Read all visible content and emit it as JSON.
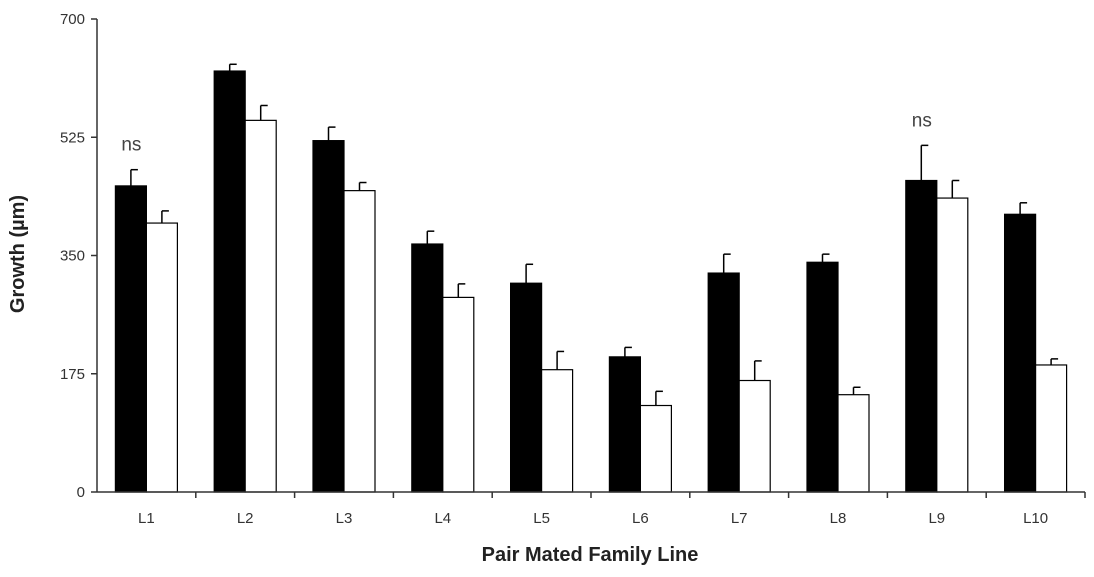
{
  "chart_data": {
    "type": "bar",
    "title": "",
    "xlabel": "Pair Mated Family Line",
    "ylabel": "Growth (µm)",
    "ylim": [
      0,
      700
    ],
    "yticks": [
      0,
      175,
      350,
      525,
      700
    ],
    "categories": [
      "L1",
      "L2",
      "L3",
      "L4",
      "L5",
      "L6",
      "L7",
      "L8",
      "L9",
      "L10"
    ],
    "series": [
      {
        "color": "#000000",
        "values": [
          453,
          623,
          520,
          367,
          309,
          200,
          324,
          340,
          461,
          411
        ],
        "errors": [
          24,
          10,
          20,
          19,
          28,
          14,
          28,
          12,
          52,
          17
        ]
      },
      {
        "color": "#ffffff",
        "values": [
          398,
          550,
          446,
          288,
          181,
          128,
          165,
          144,
          435,
          188
        ],
        "errors": [
          18,
          22,
          12,
          20,
          27,
          21,
          29,
          11,
          26,
          9
        ]
      }
    ],
    "annotations": [
      {
        "category": "L1",
        "text": "ns"
      },
      {
        "category": "L9",
        "text": "ns"
      }
    ],
    "grid": false,
    "legend": "none"
  }
}
